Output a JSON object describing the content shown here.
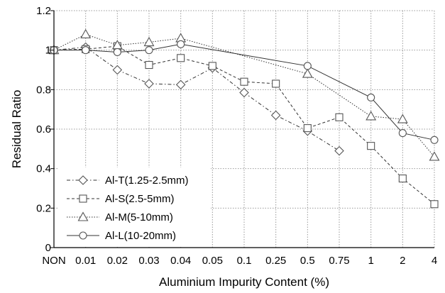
{
  "chart_data": {
    "type": "line",
    "title": "",
    "xlabel": "Aluminium Impurity Content (%)",
    "ylabel": "Residual Ratio",
    "categories": [
      "NON",
      "0.01",
      "0.02",
      "0.03",
      "0.04",
      "0.05",
      "0.1",
      "0.25",
      "0.5",
      "0.75",
      "1",
      "2",
      "4"
    ],
    "ylim": [
      0,
      1.2
    ],
    "yticks": [
      "0",
      "0.2",
      "0.4",
      "0.6",
      "0.8",
      "1",
      "1.2"
    ],
    "grid": true,
    "legend_position": "bottom-left",
    "series": [
      {
        "name": "Al-T(1.25-2.5mm)",
        "marker": "diamond",
        "line_style": "dash-dot",
        "points": [
          [
            0,
            1.0
          ],
          [
            1,
            1.015
          ],
          [
            2,
            0.9
          ],
          [
            3,
            0.83
          ],
          [
            4,
            0.825
          ],
          [
            5,
            0.91
          ],
          [
            6,
            0.785
          ],
          [
            7,
            0.67
          ],
          [
            8,
            0.59
          ],
          [
            9,
            0.49
          ]
        ]
      },
      {
        "name": "Al-S(2.5-5mm)",
        "marker": "square",
        "line_style": "dashed",
        "points": [
          [
            0,
            1.0
          ],
          [
            1,
            1.005
          ],
          [
            2,
            1.02
          ],
          [
            3,
            0.925
          ],
          [
            4,
            0.96
          ],
          [
            5,
            0.92
          ],
          [
            6,
            0.84
          ],
          [
            7,
            0.83
          ],
          [
            8,
            0.605
          ],
          [
            9,
            0.66
          ],
          [
            10,
            0.515
          ],
          [
            11,
            0.35
          ],
          [
            12,
            0.22
          ]
        ]
      },
      {
        "name": "Al-M(5-10mm)",
        "marker": "triangle",
        "line_style": "dotted",
        "points": [
          [
            0,
            1.0
          ],
          [
            1,
            1.08
          ],
          [
            2,
            1.025
          ],
          [
            3,
            1.04
          ],
          [
            4,
            1.06
          ],
          [
            8,
            0.88
          ],
          [
            10,
            0.665
          ],
          [
            11,
            0.65
          ],
          [
            12,
            0.46
          ]
        ]
      },
      {
        "name": "Al-L(10-20mm)",
        "marker": "circle",
        "line_style": "solid",
        "points": [
          [
            0,
            1.0
          ],
          [
            1,
            1.0
          ],
          [
            2,
            0.99
          ],
          [
            3,
            1.0
          ],
          [
            4,
            1.03
          ],
          [
            8,
            0.92
          ],
          [
            10,
            0.76
          ],
          [
            11,
            0.58
          ],
          [
            12,
            0.545
          ]
        ]
      }
    ]
  }
}
